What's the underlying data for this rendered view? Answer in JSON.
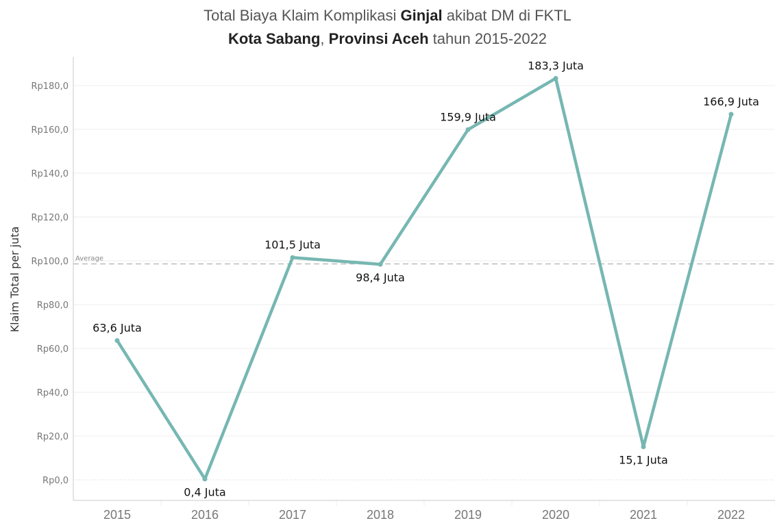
{
  "chart_data": {
    "type": "line",
    "title_line1": {
      "prefix": "Total Biaya Klaim Komplikasi ",
      "bold": "Ginjal",
      "suffix": " akibat DM di FKTL"
    },
    "title_line2": {
      "bold1": "Kota Sabang",
      "sep": ", ",
      "bold2": "Provinsi Aceh",
      "suffix": " tahun 2015-2022"
    },
    "xlabel": "",
    "ylabel": "Klaim Total per juta",
    "categories": [
      "2015",
      "2016",
      "2017",
      "2018",
      "2019",
      "2020",
      "2021",
      "2022"
    ],
    "series": [
      {
        "name": "Klaim Total",
        "values": [
          63.6,
          0.4,
          101.5,
          98.4,
          159.9,
          183.3,
          15.1,
          166.9
        ],
        "labels": [
          "63,6 Juta",
          "0,4 Juta",
          "101,5 Juta",
          "98,4 Juta",
          "159,9 Juta",
          "183,3 Juta",
          "15,1 Juta",
          "166,9 Juta"
        ],
        "label_positions": [
          "above",
          "below",
          "above",
          "below",
          "above",
          "above",
          "below",
          "above"
        ],
        "color": "#76b7b2"
      }
    ],
    "yticks": [
      0,
      20,
      40,
      60,
      80,
      100,
      120,
      140,
      160,
      180
    ],
    "ytick_labels": [
      "Rp0,0",
      "Rp20,0",
      "Rp40,0",
      "Rp60,0",
      "Rp80,0",
      "Rp100,0",
      "Rp120,0",
      "Rp140,0",
      "Rp160,0",
      "Rp180,0"
    ],
    "ylim": [
      -9,
      193
    ],
    "reference_line": {
      "label": "Average",
      "value": 98.6,
      "style": "dashed",
      "color": "#bbbbbb"
    },
    "grid": true,
    "legend": "none"
  }
}
